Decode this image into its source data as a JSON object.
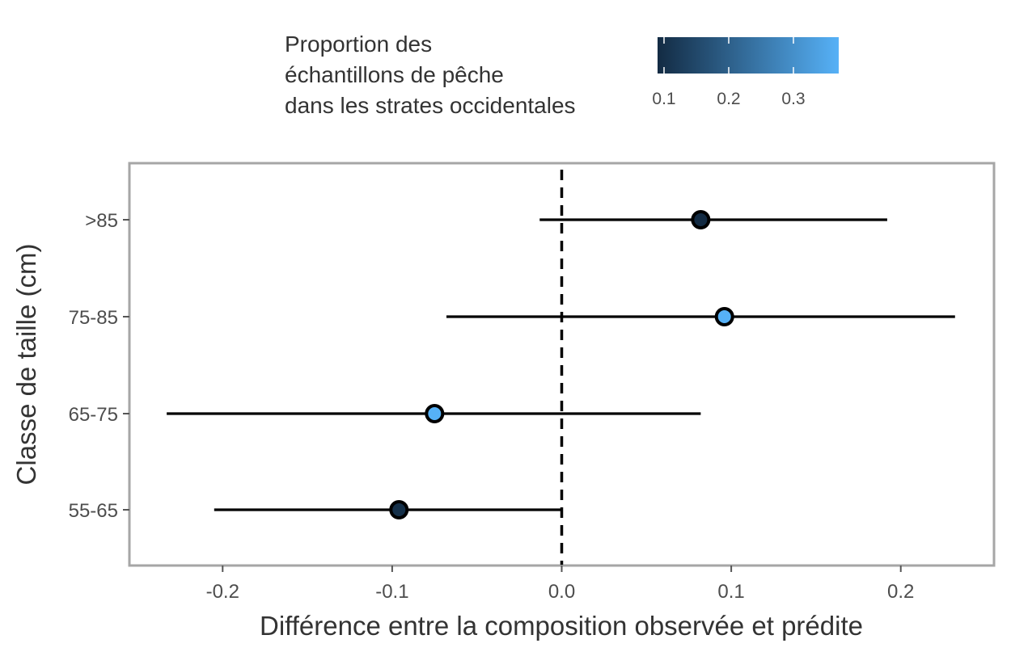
{
  "chart_data": {
    "type": "scatter",
    "subtype": "point-with-interval",
    "xlabel": "Différence entre la composition observée et prédite",
    "ylabel": "Classe de taille (cm)",
    "xlim": [
      -0.255,
      0.255
    ],
    "x_ticks": [
      -0.2,
      -0.1,
      0.0,
      0.1,
      0.2
    ],
    "x_tick_labels": [
      "-0.2",
      "-0.1",
      "0.0",
      "0.1",
      "0.2"
    ],
    "categories": [
      "55-65",
      "65-75",
      "75-85",
      ">85"
    ],
    "reference_line": {
      "x": 0.0,
      "style": "dashed"
    },
    "points": [
      {
        "category": ">85",
        "value": 0.082,
        "lower": -0.013,
        "upper": 0.192,
        "color_value": 0.09
      },
      {
        "category": "75-85",
        "value": 0.096,
        "lower": -0.068,
        "upper": 0.232,
        "color_value": 0.37
      },
      {
        "category": "65-75",
        "value": -0.075,
        "lower": -0.233,
        "upper": 0.082,
        "color_value": 0.37
      },
      {
        "category": "55-65",
        "value": -0.096,
        "lower": -0.205,
        "upper": 0.0,
        "color_value": 0.1
      }
    ],
    "legend": {
      "title_lines": [
        "Proportion des",
        "échantillons de pêche",
        "dans les strates occidentales"
      ],
      "position": "top",
      "type": "colorbar",
      "range": [
        0.09,
        0.37
      ],
      "ticks": [
        0.1,
        0.2,
        0.3
      ],
      "tick_labels": [
        "0.1",
        "0.2",
        "0.3"
      ],
      "color_low": "#132B43",
      "color_high": "#56B1F7"
    },
    "grid": false,
    "panel_border_color": "#a6a6a6"
  }
}
